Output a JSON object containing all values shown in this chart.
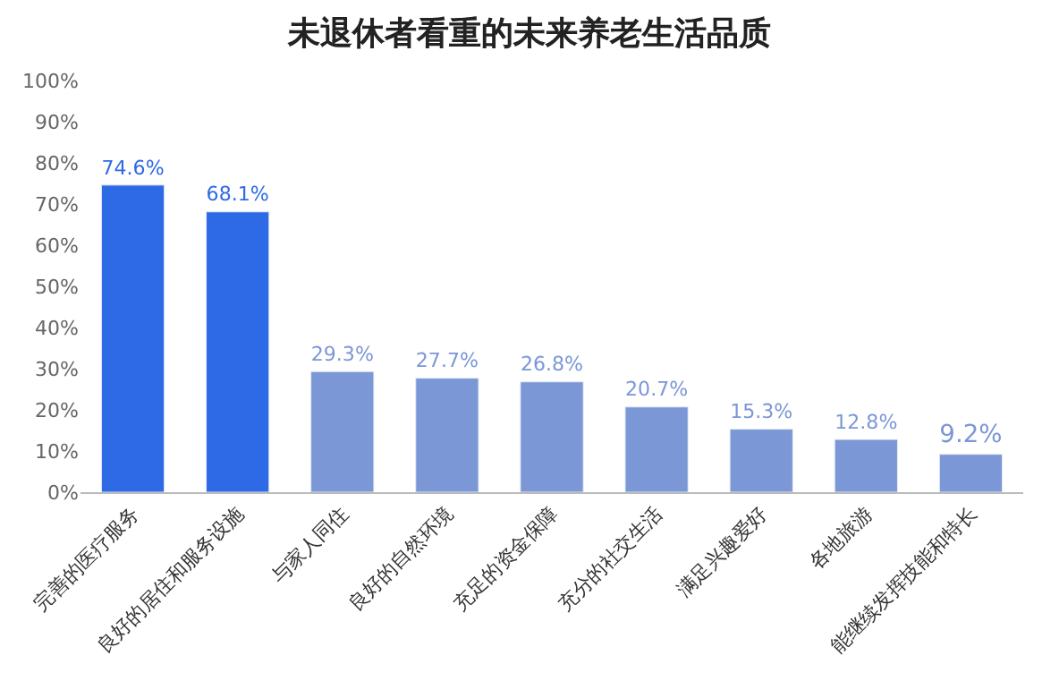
{
  "chart_data": {
    "type": "bar",
    "title": "未退休者看重的未来养老生活品质",
    "categories": [
      "完善的医疗服务",
      "良好的居住和服务设施",
      "与家人同住",
      "良好的自然环境",
      "充足的资金保障",
      "充分的社交生活",
      "满足兴趣爱好",
      "各地旅游",
      "能继续发挥技能和特长"
    ],
    "values": [
      74.6,
      68.1,
      29.3,
      27.7,
      26.8,
      20.7,
      15.3,
      12.8,
      9.2
    ],
    "value_labels": [
      "74.6%",
      "68.1%",
      "29.3%",
      "27.7%",
      "26.8%",
      "20.7%",
      "15.3%",
      "12.8%",
      "9.2%"
    ],
    "colors": [
      "#2f6ae6",
      "#2f6ae6",
      "#7c97d6",
      "#7c97d6",
      "#7c97d6",
      "#7c97d6",
      "#7c97d6",
      "#7c97d6",
      "#7c97d6"
    ],
    "ylim": [
      0,
      100
    ],
    "yticks": [
      {
        "value": 0,
        "label": "0%"
      },
      {
        "value": 10,
        "label": "10%"
      },
      {
        "value": 20,
        "label": "20%"
      },
      {
        "value": 30,
        "label": "30%"
      },
      {
        "value": 40,
        "label": "40%"
      },
      {
        "value": 50,
        "label": "50%"
      },
      {
        "value": 60,
        "label": "60%"
      },
      {
        "value": 70,
        "label": "70%"
      },
      {
        "value": 80,
        "label": "80%"
      },
      {
        "value": 90,
        "label": "90%"
      },
      {
        "value": 100,
        "label": "100%"
      }
    ]
  }
}
